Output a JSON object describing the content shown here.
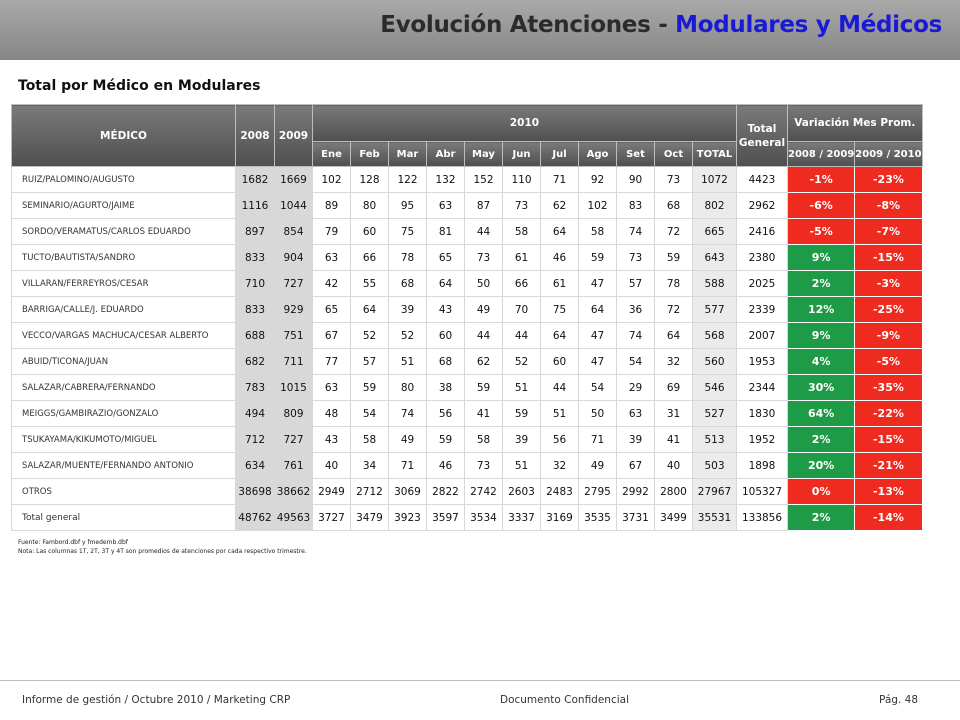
{
  "header": {
    "title_part1": "Evolución Atenciones - ",
    "title_part2": "Modulares y Médicos",
    "title_highlight_color": "#1a1ad6"
  },
  "subtitle": "Total por Médico en Modulares",
  "table": {
    "headers": {
      "medico": "MÉDICO",
      "y2008": "2008",
      "y2009": "2009",
      "y2010": "2010",
      "total_general": "Total General",
      "variacion": "Variación Mes Prom.",
      "months": [
        "Ene",
        "Feb",
        "Mar",
        "Abr",
        "May",
        "Jun",
        "Jul",
        "Ago",
        "Set",
        "Oct",
        "TOTAL"
      ],
      "var1": "2008 / 2009",
      "var2": "2009 / 2010"
    },
    "rows": [
      {
        "medico": "RUIZ/PALOMINO/AUGUSTO",
        "y2008": "1682",
        "y2009": "1669",
        "months": [
          "102",
          "128",
          "122",
          "132",
          "152",
          "110",
          "71",
          "92",
          "90",
          "73"
        ],
        "total_2010": "1072",
        "total_general": "4423",
        "var_08_09": "-1%",
        "var_09_10": "-23%",
        "var_08_09_status": "neg",
        "var_09_10_status": "neg"
      },
      {
        "medico": "SEMINARIO/AGURTO/JAIME",
        "y2008": "1116",
        "y2009": "1044",
        "months": [
          "89",
          "80",
          "95",
          "63",
          "87",
          "73",
          "62",
          "102",
          "83",
          "68"
        ],
        "total_2010": "802",
        "total_general": "2962",
        "var_08_09": "-6%",
        "var_09_10": "-8%",
        "var_08_09_status": "neg",
        "var_09_10_status": "neg"
      },
      {
        "medico": "SORDO/VERAMATUS/CARLOS EDUARDO",
        "y2008": "897",
        "y2009": "854",
        "months": [
          "79",
          "60",
          "75",
          "81",
          "44",
          "58",
          "64",
          "58",
          "74",
          "72"
        ],
        "total_2010": "665",
        "total_general": "2416",
        "var_08_09": "-5%",
        "var_09_10": "-7%",
        "var_08_09_status": "neg",
        "var_09_10_status": "neg"
      },
      {
        "medico": "TUCTO/BAUTISTA/SANDRO",
        "y2008": "833",
        "y2009": "904",
        "months": [
          "63",
          "66",
          "78",
          "65",
          "73",
          "61",
          "46",
          "59",
          "73",
          "59"
        ],
        "total_2010": "643",
        "total_general": "2380",
        "var_08_09": "9%",
        "var_09_10": "-15%",
        "var_08_09_status": "pos",
        "var_09_10_status": "neg"
      },
      {
        "medico": "VILLARAN/FERREYROS/CESAR",
        "y2008": "710",
        "y2009": "727",
        "months": [
          "42",
          "55",
          "68",
          "64",
          "50",
          "66",
          "61",
          "47",
          "57",
          "78"
        ],
        "total_2010": "588",
        "total_general": "2025",
        "var_08_09": "2%",
        "var_09_10": "-3%",
        "var_08_09_status": "pos",
        "var_09_10_status": "neg"
      },
      {
        "medico": "BARRIGA/CALLE/J. EDUARDO",
        "y2008": "833",
        "y2009": "929",
        "months": [
          "65",
          "64",
          "39",
          "43",
          "49",
          "70",
          "75",
          "64",
          "36",
          "72"
        ],
        "total_2010": "577",
        "total_general": "2339",
        "var_08_09": "12%",
        "var_09_10": "-25%",
        "var_08_09_status": "pos",
        "var_09_10_status": "neg"
      },
      {
        "medico": "VECCO/VARGAS MACHUCA/CESAR ALBERTO",
        "y2008": "688",
        "y2009": "751",
        "months": [
          "67",
          "52",
          "52",
          "60",
          "44",
          "44",
          "64",
          "47",
          "74",
          "64"
        ],
        "total_2010": "568",
        "total_general": "2007",
        "var_08_09": "9%",
        "var_09_10": "-9%",
        "var_08_09_status": "pos",
        "var_09_10_status": "neg"
      },
      {
        "medico": "ABUID/TICONA/JUAN",
        "y2008": "682",
        "y2009": "711",
        "months": [
          "77",
          "57",
          "51",
          "68",
          "62",
          "52",
          "60",
          "47",
          "54",
          "32"
        ],
        "total_2010": "560",
        "total_general": "1953",
        "var_08_09": "4%",
        "var_09_10": "-5%",
        "var_08_09_status": "pos",
        "var_09_10_status": "neg"
      },
      {
        "medico": "SALAZAR/CABRERA/FERNANDO",
        "y2008": "783",
        "y2009": "1015",
        "months": [
          "63",
          "59",
          "80",
          "38",
          "59",
          "51",
          "44",
          "54",
          "29",
          "69"
        ],
        "total_2010": "546",
        "total_general": "2344",
        "var_08_09": "30%",
        "var_09_10": "-35%",
        "var_08_09_status": "pos",
        "var_09_10_status": "neg"
      },
      {
        "medico": "MEIGGS/GAMBIRAZIO/GONZALO",
        "y2008": "494",
        "y2009": "809",
        "months": [
          "48",
          "54",
          "74",
          "56",
          "41",
          "59",
          "51",
          "50",
          "63",
          "31"
        ],
        "total_2010": "527",
        "total_general": "1830",
        "var_08_09": "64%",
        "var_09_10": "-22%",
        "var_08_09_status": "pos",
        "var_09_10_status": "neg"
      },
      {
        "medico": "TSUKAYAMA/KIKUMOTO/MIGUEL",
        "y2008": "712",
        "y2009": "727",
        "months": [
          "43",
          "58",
          "49",
          "59",
          "58",
          "39",
          "56",
          "71",
          "39",
          "41"
        ],
        "total_2010": "513",
        "total_general": "1952",
        "var_08_09": "2%",
        "var_09_10": "-15%",
        "var_08_09_status": "pos",
        "var_09_10_status": "neg"
      },
      {
        "medico": "SALAZAR/MUENTE/FERNANDO ANTONIO",
        "y2008": "634",
        "y2009": "761",
        "months": [
          "40",
          "34",
          "71",
          "46",
          "73",
          "51",
          "32",
          "49",
          "67",
          "40"
        ],
        "total_2010": "503",
        "total_general": "1898",
        "var_08_09": "20%",
        "var_09_10": "-21%",
        "var_08_09_status": "pos",
        "var_09_10_status": "neg"
      },
      {
        "medico": "OTROS",
        "y2008": "38698",
        "y2009": "38662",
        "months": [
          "2949",
          "2712",
          "3069",
          "2822",
          "2742",
          "2603",
          "2483",
          "2795",
          "2992",
          "2800"
        ],
        "total_2010": "27967",
        "total_general": "105327",
        "var_08_09": "0%",
        "var_09_10": "-13%",
        "var_08_09_status": "neg",
        "var_09_10_status": "neg"
      },
      {
        "medico": "Total general",
        "y2008": "48762",
        "y2009": "49563",
        "months": [
          "3727",
          "3479",
          "3923",
          "3597",
          "3534",
          "3337",
          "3169",
          "3535",
          "3731",
          "3499"
        ],
        "total_2010": "35531",
        "total_general": "133856",
        "var_08_09": "2%",
        "var_09_10": "-14%",
        "var_08_09_status": "pos",
        "var_09_10_status": "neg"
      }
    ]
  },
  "notes": {
    "source": "Fuente: Fambord.dbf   y fmedemb.dbf",
    "note": "Nota: Las columnas 1T, 2T, 3T y 4T  son promedios de atenciones por cada respectivo trimestre."
  },
  "footer": {
    "left": "Informe de gestión / Octubre 2010 / Marketing CRP",
    "center": "Documento Confidencial",
    "right": "Pág. 48"
  },
  "colors": {
    "positive": "#1e9b47",
    "negative": "#ef2a1e",
    "header_gray": "#5f5f5f"
  }
}
